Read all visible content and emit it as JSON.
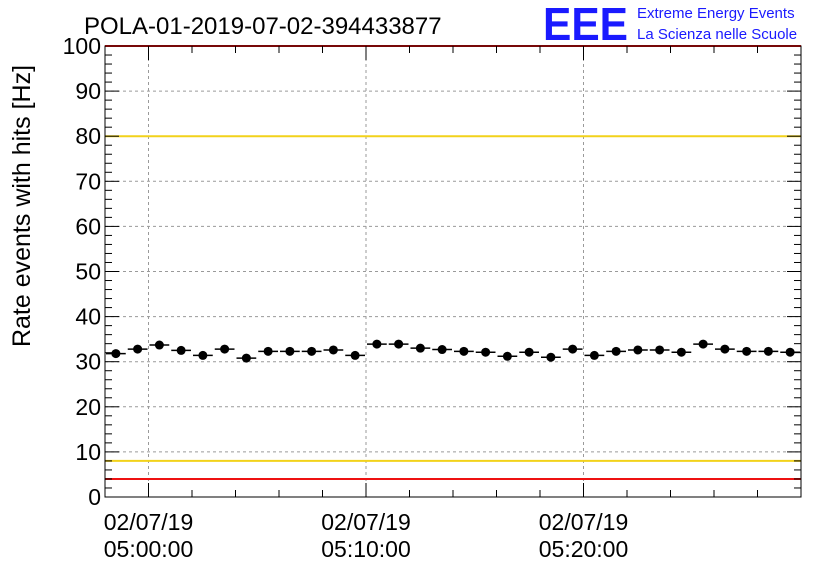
{
  "chart_data": {
    "type": "scatter",
    "title": "POLA-01-2019-07-02-394433877",
    "ylabel": "Rate events with hits [Hz]",
    "xlabel": "",
    "ylim": [
      0,
      100
    ],
    "xlim": [
      "2019-07-02 04:58:00",
      "2019-07-02 05:30:00"
    ],
    "y_ticks": [
      "0",
      "10",
      "20",
      "30",
      "40",
      "50",
      "60",
      "70",
      "80",
      "90",
      "100"
    ],
    "x_ticks": [
      {
        "x": "2019-07-02 05:00:00",
        "date": "02/07/19",
        "time": "05:00:00"
      },
      {
        "x": "2019-07-02 05:10:00",
        "date": "02/07/19",
        "time": "05:10:00"
      },
      {
        "x": "2019-07-02 05:20:00",
        "date": "02/07/19",
        "time": "05:20:00"
      }
    ],
    "grid": true,
    "reference_lines": [
      {
        "y": 100,
        "color": "#ee1111"
      },
      {
        "y": 80,
        "color": "#f2d21b"
      },
      {
        "y": 8,
        "color": "#f2d21b"
      },
      {
        "y": 4,
        "color": "#ee1111"
      }
    ],
    "series": [
      {
        "color": "#000000",
        "points": [
          {
            "x": "2019-07-02 04:58:30",
            "y": 31.8
          },
          {
            "x": "2019-07-02 04:59:30",
            "y": 32.8
          },
          {
            "x": "2019-07-02 05:00:30",
            "y": 33.7
          },
          {
            "x": "2019-07-02 05:01:30",
            "y": 32.5
          },
          {
            "x": "2019-07-02 05:02:30",
            "y": 31.4
          },
          {
            "x": "2019-07-02 05:03:30",
            "y": 32.8
          },
          {
            "x": "2019-07-02 05:04:30",
            "y": 30.8
          },
          {
            "x": "2019-07-02 05:05:30",
            "y": 32.3
          },
          {
            "x": "2019-07-02 05:06:30",
            "y": 32.3
          },
          {
            "x": "2019-07-02 05:07:30",
            "y": 32.3
          },
          {
            "x": "2019-07-02 05:08:30",
            "y": 32.6
          },
          {
            "x": "2019-07-02 05:09:30",
            "y": 31.4
          },
          {
            "x": "2019-07-02 05:10:30",
            "y": 33.9
          },
          {
            "x": "2019-07-02 05:11:30",
            "y": 33.9
          },
          {
            "x": "2019-07-02 05:12:30",
            "y": 33.0
          },
          {
            "x": "2019-07-02 05:13:30",
            "y": 32.7
          },
          {
            "x": "2019-07-02 05:14:30",
            "y": 32.3
          },
          {
            "x": "2019-07-02 05:15:30",
            "y": 32.1
          },
          {
            "x": "2019-07-02 05:16:30",
            "y": 31.2
          },
          {
            "x": "2019-07-02 05:17:30",
            "y": 32.1
          },
          {
            "x": "2019-07-02 05:18:30",
            "y": 31.0
          },
          {
            "x": "2019-07-02 05:19:30",
            "y": 32.8
          },
          {
            "x": "2019-07-02 05:20:30",
            "y": 31.4
          },
          {
            "x": "2019-07-02 05:21:30",
            "y": 32.3
          },
          {
            "x": "2019-07-02 05:22:30",
            "y": 32.6
          },
          {
            "x": "2019-07-02 05:23:30",
            "y": 32.6
          },
          {
            "x": "2019-07-02 05:24:30",
            "y": 32.1
          },
          {
            "x": "2019-07-02 05:25:30",
            "y": 33.9
          },
          {
            "x": "2019-07-02 05:26:30",
            "y": 32.8
          },
          {
            "x": "2019-07-02 05:27:30",
            "y": 32.3
          },
          {
            "x": "2019-07-02 05:28:30",
            "y": 32.3
          },
          {
            "x": "2019-07-02 05:29:30",
            "y": 32.1
          }
        ]
      }
    ]
  },
  "logo": {
    "mark": "EEE",
    "line1": "Extreme Energy Events",
    "line2": "La Scienza nelle Scuole",
    "color": "#1a1aff"
  }
}
